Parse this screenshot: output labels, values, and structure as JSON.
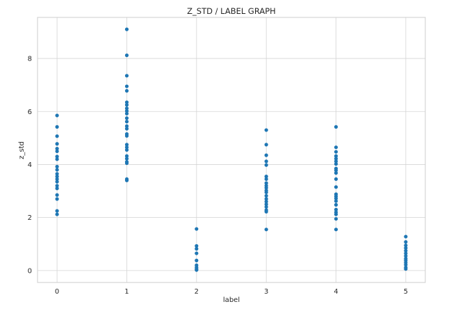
{
  "chart_data": {
    "type": "scatter",
    "title": "Z_STD / LABEL GRAPH",
    "xlabel": "label",
    "ylabel": "z_std",
    "xlim": [
      -0.28,
      5.28
    ],
    "ylim": [
      -0.45,
      9.55
    ],
    "xticks": [
      0,
      1,
      2,
      3,
      4,
      5
    ],
    "yticks": [
      0,
      2,
      4,
      6,
      8
    ],
    "grid": true,
    "point_color": "#1f77b4",
    "points": [
      {
        "x": 0,
        "y": 5.85
      },
      {
        "x": 0,
        "y": 5.42
      },
      {
        "x": 0,
        "y": 5.07
      },
      {
        "x": 0,
        "y": 4.78
      },
      {
        "x": 0,
        "y": 4.6
      },
      {
        "x": 0,
        "y": 4.5
      },
      {
        "x": 0,
        "y": 4.3
      },
      {
        "x": 0,
        "y": 4.2
      },
      {
        "x": 0,
        "y": 3.92
      },
      {
        "x": 0,
        "y": 3.8
      },
      {
        "x": 0,
        "y": 3.65
      },
      {
        "x": 0,
        "y": 3.55
      },
      {
        "x": 0,
        "y": 3.45
      },
      {
        "x": 0,
        "y": 3.35
      },
      {
        "x": 0,
        "y": 3.2
      },
      {
        "x": 0,
        "y": 3.1
      },
      {
        "x": 0,
        "y": 2.85
      },
      {
        "x": 0,
        "y": 2.7
      },
      {
        "x": 0,
        "y": 2.25
      },
      {
        "x": 0,
        "y": 2.12
      },
      {
        "x": 1,
        "y": 9.1
      },
      {
        "x": 1,
        "y": 8.12
      },
      {
        "x": 1,
        "y": 7.35
      },
      {
        "x": 1,
        "y": 6.95
      },
      {
        "x": 1,
        "y": 6.78
      },
      {
        "x": 1,
        "y": 6.35
      },
      {
        "x": 1,
        "y": 6.25
      },
      {
        "x": 1,
        "y": 6.12
      },
      {
        "x": 1,
        "y": 6.02
      },
      {
        "x": 1,
        "y": 5.92
      },
      {
        "x": 1,
        "y": 5.75
      },
      {
        "x": 1,
        "y": 5.62
      },
      {
        "x": 1,
        "y": 5.45
      },
      {
        "x": 1,
        "y": 5.35
      },
      {
        "x": 1,
        "y": 5.15
      },
      {
        "x": 1,
        "y": 5.08
      },
      {
        "x": 1,
        "y": 4.75
      },
      {
        "x": 1,
        "y": 4.65
      },
      {
        "x": 1,
        "y": 4.55
      },
      {
        "x": 1,
        "y": 4.32
      },
      {
        "x": 1,
        "y": 4.22
      },
      {
        "x": 1,
        "y": 4.1
      },
      {
        "x": 1,
        "y": 4.05
      },
      {
        "x": 1,
        "y": 3.45
      },
      {
        "x": 1,
        "y": 3.4
      },
      {
        "x": 2,
        "y": 1.57
      },
      {
        "x": 2,
        "y": 0.93
      },
      {
        "x": 2,
        "y": 0.82
      },
      {
        "x": 2,
        "y": 0.65
      },
      {
        "x": 2,
        "y": 0.38
      },
      {
        "x": 2,
        "y": 0.2
      },
      {
        "x": 2,
        "y": 0.12
      },
      {
        "x": 2,
        "y": 0.06
      },
      {
        "x": 2,
        "y": 0.02
      },
      {
        "x": 3,
        "y": 5.3
      },
      {
        "x": 3,
        "y": 4.75
      },
      {
        "x": 3,
        "y": 4.35
      },
      {
        "x": 3,
        "y": 4.12
      },
      {
        "x": 3,
        "y": 3.98
      },
      {
        "x": 3,
        "y": 3.55
      },
      {
        "x": 3,
        "y": 3.45
      },
      {
        "x": 3,
        "y": 3.3
      },
      {
        "x": 3,
        "y": 3.2
      },
      {
        "x": 3,
        "y": 3.12
      },
      {
        "x": 3,
        "y": 3.02
      },
      {
        "x": 3,
        "y": 2.95
      },
      {
        "x": 3,
        "y": 2.82
      },
      {
        "x": 3,
        "y": 2.7
      },
      {
        "x": 3,
        "y": 2.6
      },
      {
        "x": 3,
        "y": 2.5
      },
      {
        "x": 3,
        "y": 2.4
      },
      {
        "x": 3,
        "y": 2.28
      },
      {
        "x": 3,
        "y": 2.22
      },
      {
        "x": 3,
        "y": 1.55
      },
      {
        "x": 4,
        "y": 5.42
      },
      {
        "x": 4,
        "y": 4.65
      },
      {
        "x": 4,
        "y": 4.48
      },
      {
        "x": 4,
        "y": 4.32
      },
      {
        "x": 4,
        "y": 4.22
      },
      {
        "x": 4,
        "y": 4.12
      },
      {
        "x": 4,
        "y": 4.02
      },
      {
        "x": 4,
        "y": 3.85
      },
      {
        "x": 4,
        "y": 3.78
      },
      {
        "x": 4,
        "y": 3.68
      },
      {
        "x": 4,
        "y": 3.45
      },
      {
        "x": 4,
        "y": 3.15
      },
      {
        "x": 4,
        "y": 2.88
      },
      {
        "x": 4,
        "y": 2.8
      },
      {
        "x": 4,
        "y": 2.72
      },
      {
        "x": 4,
        "y": 2.62
      },
      {
        "x": 4,
        "y": 2.48
      },
      {
        "x": 4,
        "y": 2.3
      },
      {
        "x": 4,
        "y": 2.2
      },
      {
        "x": 4,
        "y": 2.12
      },
      {
        "x": 4,
        "y": 1.95
      },
      {
        "x": 4,
        "y": 1.55
      },
      {
        "x": 5,
        "y": 1.28
      },
      {
        "x": 5,
        "y": 1.08
      },
      {
        "x": 5,
        "y": 0.95
      },
      {
        "x": 5,
        "y": 0.85
      },
      {
        "x": 5,
        "y": 0.75
      },
      {
        "x": 5,
        "y": 0.65
      },
      {
        "x": 5,
        "y": 0.55
      },
      {
        "x": 5,
        "y": 0.45
      },
      {
        "x": 5,
        "y": 0.38
      },
      {
        "x": 5,
        "y": 0.3
      },
      {
        "x": 5,
        "y": 0.22
      },
      {
        "x": 5,
        "y": 0.12
      },
      {
        "x": 5,
        "y": 0.06
      }
    ]
  }
}
